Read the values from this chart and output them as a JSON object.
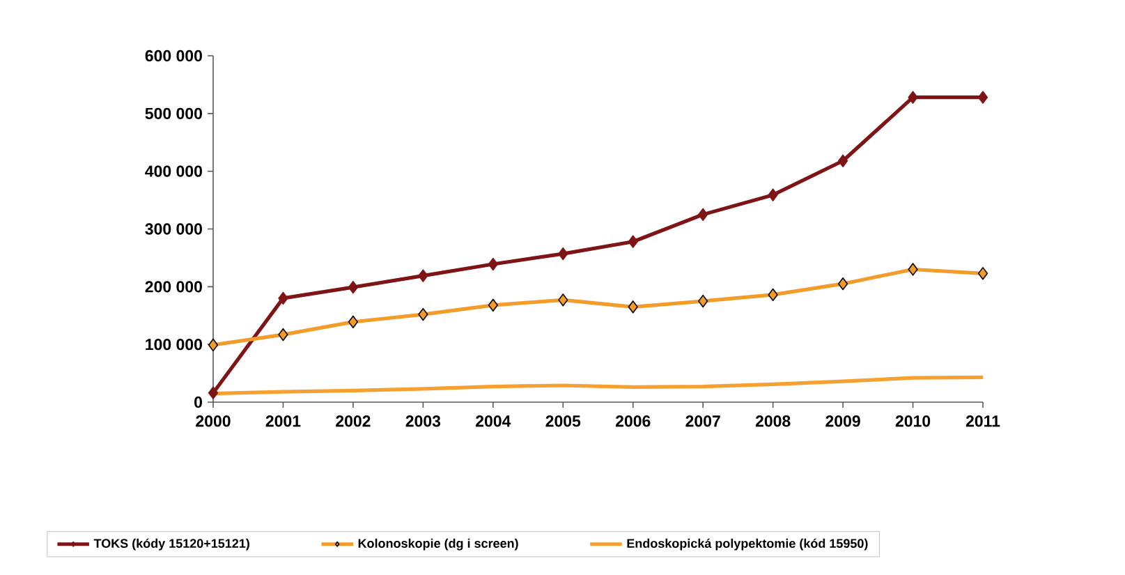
{
  "chart_data": {
    "type": "line",
    "categories": [
      "2000",
      "2001",
      "2002",
      "2003",
      "2004",
      "2005",
      "2006",
      "2007",
      "2008",
      "2009",
      "2010",
      "2011"
    ],
    "ylim": [
      0,
      600000
    ],
    "yticks": [
      0,
      {
        "value": 100000,
        "label": "100 000"
      },
      {
        "value": 200000,
        "label": "200 000"
      },
      {
        "value": 300000,
        "label": "300 000"
      },
      {
        "value": 400000,
        "label": "400 000"
      },
      {
        "value": 500000,
        "label": "500 000"
      },
      {
        "value": 600000,
        "label": "600 000"
      }
    ],
    "series": [
      {
        "name": "TOKS (kódy 15120+15121)",
        "color": "#7f1416",
        "marker": "diamond",
        "values": [
          16000,
          180000,
          199000,
          219000,
          239000,
          257000,
          278000,
          325000,
          359000,
          418000,
          528000,
          528000
        ]
      },
      {
        "name": "Kolonoskopie (dg i screen)",
        "color": "#f39c2a",
        "marker": "diamond",
        "values": [
          99000,
          117000,
          139000,
          152000,
          168000,
          177000,
          165000,
          175000,
          186000,
          205000,
          230000,
          223000
        ]
      },
      {
        "name": "Endoskopická polypektomie (kód 15950)",
        "color": "#f5a030",
        "marker": "none",
        "values": [
          15000,
          18000,
          20000,
          23000,
          27000,
          29000,
          26000,
          27000,
          31000,
          36000,
          42000,
          43000
        ]
      }
    ],
    "legend": "bottom",
    "grid": false
  }
}
